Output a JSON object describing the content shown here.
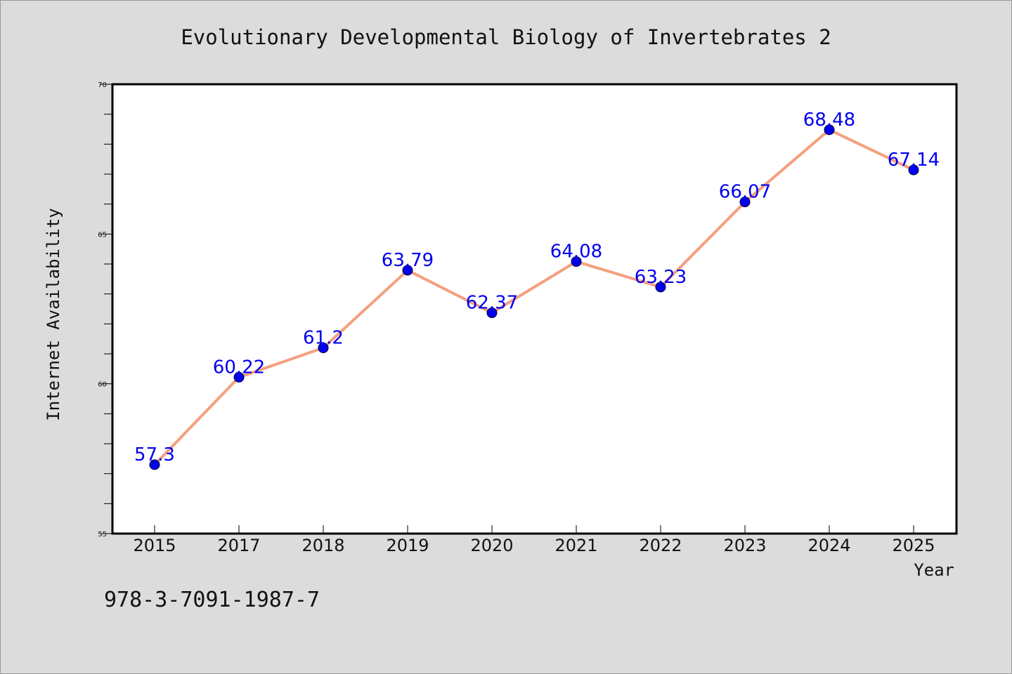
{
  "chart_data": {
    "type": "line",
    "title": "Evolutionary Developmental Biology of Invertebrates 2",
    "xlabel": "Year",
    "ylabel": "Internet Availability",
    "categories": [
      "2015",
      "2017",
      "2018",
      "2019",
      "2020",
      "2021",
      "2022",
      "2023",
      "2024",
      "2025"
    ],
    "series": [
      {
        "values": [
          57.3,
          60.22,
          61.2,
          63.79,
          62.37,
          64.08,
          63.23,
          66.07,
          68.48,
          67.14
        ],
        "data_labels": [
          "57.3",
          "60.22",
          "61.2",
          "63.79",
          "62.37",
          "64.08",
          "63.23",
          "66.07",
          "68.48",
          "67.14"
        ]
      }
    ],
    "ylim": [
      55,
      70
    ],
    "yticks": [
      55,
      60,
      65,
      70
    ],
    "ytick_labels": [
      "55",
      "60",
      "65",
      "70"
    ],
    "grid": false,
    "legend": "none",
    "colors": {
      "line": "#f4a07e",
      "marker": "#0000ee",
      "data_label": "#0000ee",
      "background": "#dcdcdc",
      "plot_background": "#ffffff"
    }
  },
  "footer": {
    "isbn": "978-3-7091-1987-7"
  }
}
